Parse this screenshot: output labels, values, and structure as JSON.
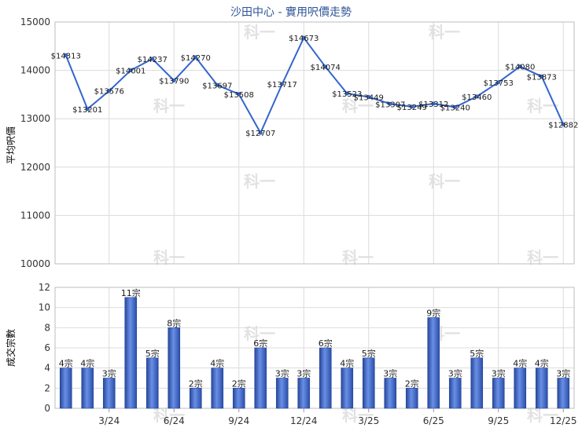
{
  "chart_data": [
    {
      "type": "line",
      "title": "沙田中心 - 實用呎價走勢",
      "ylabel": "平均呎價",
      "ylim": [
        10000,
        15000
      ],
      "yticks": [
        10000,
        11000,
        12000,
        13000,
        14000,
        15000
      ],
      "grid": true,
      "color": "#3366cc",
      "series": [
        {
          "values": [
            14313,
            13201,
            13576,
            14001,
            14237,
            13790,
            14270,
            13697,
            13508,
            12707,
            13717,
            14673,
            14074,
            13523,
            13449,
            13307,
            13249,
            13312,
            13240,
            13460,
            13753,
            14080,
            13873,
            12882
          ],
          "labels": [
            "$14313",
            "$13201",
            "$13576",
            "$14001",
            "$14237",
            "$13790",
            "$14270",
            "$13697",
            "$13508",
            "$12707",
            "$13717",
            "$14673",
            "$14074",
            "$13523",
            "$13449",
            "$13307",
            "$13249",
            "$13312",
            "$13240",
            "$13460",
            "$13753",
            "$14080",
            "$13873",
            "$12882"
          ]
        }
      ]
    },
    {
      "type": "bar",
      "ylabel": "成交宗數",
      "ylim": [
        0,
        12
      ],
      "yticks": [
        0,
        2,
        4,
        6,
        8,
        10,
        12
      ],
      "grid": true,
      "color": "#3b63c4",
      "x_ticks": [
        "3/24",
        "6/24",
        "9/24",
        "12/24",
        "3/25",
        "6/25",
        "9/25",
        "12/25"
      ],
      "series": [
        {
          "values": [
            4,
            4,
            3,
            11,
            5,
            8,
            2,
            4,
            2,
            6,
            3,
            3,
            6,
            4,
            5,
            3,
            2,
            9,
            3,
            5,
            3,
            4,
            4,
            3
          ],
          "labels": [
            "4宗",
            "4宗",
            "3宗",
            "11宗",
            "5宗",
            "8宗",
            "2宗",
            "4宗",
            "2宗",
            "6宗",
            "3宗",
            "3宗",
            "6宗",
            "4宗",
            "5宗",
            "3宗",
            "2宗",
            "9宗",
            "3宗",
            "5宗",
            "3宗",
            "4宗",
            "4宗",
            "3宗"
          ]
        }
      ]
    }
  ],
  "watermark": "科一"
}
